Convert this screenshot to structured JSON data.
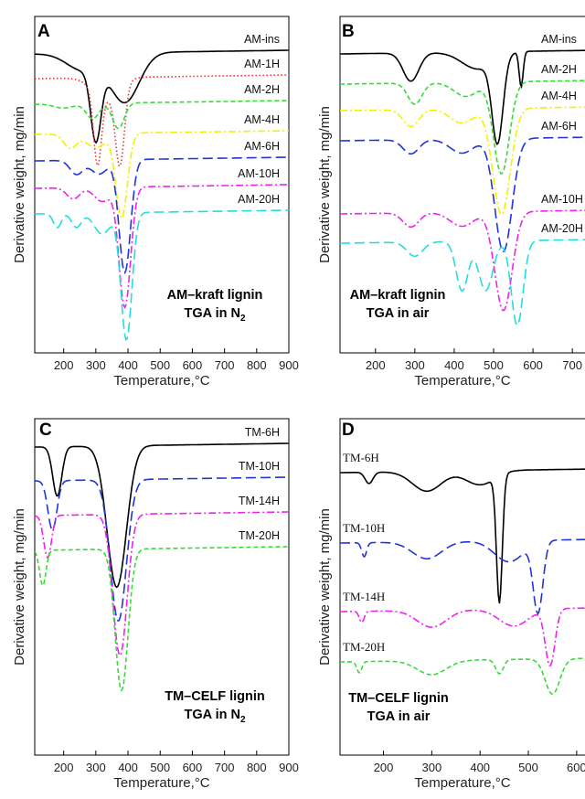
{
  "chart_data": [
    {
      "panel": "A",
      "type": "line",
      "xlabel": "Temperature,°C",
      "ylabel": "Derivative weight, mg/min",
      "xlim": [
        110,
        900
      ],
      "xticks": [
        200,
        300,
        400,
        500,
        600,
        700,
        800,
        900
      ],
      "yticks": [],
      "annotation": [
        "AM–kraft lignin",
        "TGA in N",
        "2"
      ],
      "series": [
        {
          "name": "AM-ins",
          "color": "#000000",
          "dash": "solid",
          "offset": 55,
          "scale": 1.0,
          "peaks": [
            [
              300,
              0.5,
              16
            ],
            [
              390,
              0.35,
              45
            ],
            [
              260,
              0.12,
              50
            ]
          ],
          "tail": 0.05,
          "curv": [
            [
              0.4,
              1,
              0
            ],
            [
              0.05,
              0,
              0
            ]
          ]
        },
        {
          "name": "AM-1H",
          "color": "#ff2a2a",
          "dash": "dotted",
          "offset": 82,
          "scale": 1.0,
          "peaks": [
            [
              305,
              0.5,
              12
            ],
            [
              375,
              0.55,
              14
            ],
            [
              330,
              0.15,
              40
            ]
          ],
          "tail": 0.08
        },
        {
          "name": "AM-2H",
          "color": "#33dd33",
          "dash": "dashed",
          "offset": 110,
          "scale": 0.6,
          "peaks": [
            [
              290,
              0.18,
              20
            ],
            [
              370,
              0.3,
              18
            ],
            [
              200,
              0.05,
              30
            ]
          ],
          "tail": 0.05
        },
        {
          "name": "AM-4H",
          "color": "#f2f200",
          "dash": "dashdot",
          "offset": 143,
          "scale": 1.0,
          "peaks": [
            [
              380,
              0.6,
              18
            ],
            [
              220,
              0.1,
              20
            ],
            [
              300,
              0.1,
              30
            ]
          ],
          "tail": 0.05
        },
        {
          "name": "AM-6H",
          "color": "#1f35d6",
          "dash": "longdash",
          "offset": 172,
          "scale": 1.0,
          "peaks": [
            [
              390,
              0.8,
              18
            ],
            [
              240,
              0.1,
              20
            ],
            [
              310,
              0.1,
              25
            ]
          ],
          "tail": 0.05
        },
        {
          "name": "AM-10H",
          "color": "#ee22ee",
          "dash": "dashdot",
          "offset": 202,
          "scale": 1.0,
          "peaks": [
            [
              390,
              0.85,
              18
            ],
            [
              230,
              0.08,
              20
            ],
            [
              320,
              0.1,
              25
            ]
          ],
          "tail": 0.05
        },
        {
          "name": "AM-20H",
          "color": "#22dddd",
          "dash": "longdash",
          "offset": 230,
          "scale": 1.0,
          "peaks": [
            [
              395,
              0.9,
              17
            ],
            [
              180,
              0.1,
              12
            ],
            [
              240,
              0.1,
              15
            ],
            [
              320,
              0.15,
              25
            ]
          ],
          "tail": 0.05
        }
      ]
    },
    {
      "panel": "B",
      "type": "line",
      "xlabel": "Temperature,°C",
      "ylabel": "Derivative weight, mg/min",
      "xlim": [
        110,
        760
      ],
      "xticks": [
        200,
        300,
        400,
        500,
        600,
        700
      ],
      "yticks": [],
      "annotation": [
        "AM–kraft lignin",
        "TGA in air"
      ],
      "series": [
        {
          "name": "AM-ins",
          "color": "#000000",
          "dash": "solid",
          "offset": 55,
          "scale": 1.0,
          "peaks": [
            [
              290,
              0.2,
              20
            ],
            [
              510,
              0.6,
              14
            ],
            [
              570,
              0.25,
              5
            ],
            [
              460,
              0.12,
              40
            ]
          ],
          "tail": 0.0
        },
        {
          "name": "AM-2H",
          "color": "#33dd33",
          "dash": "dashed",
          "offset": 88,
          "scale": 1.0,
          "peaks": [
            [
              300,
              0.15,
              18
            ],
            [
              520,
              0.65,
              20
            ],
            [
              430,
              0.1,
              30
            ]
          ],
          "tail": 0.0
        },
        {
          "name": "AM-4H",
          "color": "#f2f200",
          "dash": "dashdot",
          "offset": 117,
          "scale": 1.0,
          "peaks": [
            [
              520,
              0.75,
              22
            ],
            [
              290,
              0.12,
              20
            ],
            [
              420,
              0.1,
              30
            ]
          ],
          "tail": 0.0
        },
        {
          "name": "AM-6H",
          "color": "#1f35d6",
          "dash": "longdash",
          "offset": 150,
          "scale": 1.0,
          "peaks": [
            [
              525,
              0.8,
              22
            ],
            [
              290,
              0.1,
              20
            ],
            [
              420,
              0.1,
              30
            ]
          ],
          "tail": 0.0
        },
        {
          "name": "AM-10H",
          "color": "#ee22ee",
          "dash": "dashdot",
          "offset": 230,
          "scale": 1.0,
          "peaks": [
            [
              525,
              0.7,
              22
            ],
            [
              290,
              0.1,
              20
            ],
            [
              420,
              0.1,
              30
            ]
          ],
          "tail": 0.0
        },
        {
          "name": "AM-20H",
          "color": "#22dddd",
          "dash": "longdash",
          "offset": 262,
          "scale": 1.0,
          "peaks": [
            [
              560,
              0.6,
              15
            ],
            [
              420,
              0.35,
              15
            ],
            [
              480,
              0.35,
              18
            ],
            [
              300,
              0.1,
              20
            ]
          ],
          "tail": 0.0
        }
      ]
    },
    {
      "panel": "C",
      "type": "line",
      "xlabel": "Temperature,°C",
      "ylabel": "Derivative weight, mg/min",
      "xlim": [
        110,
        900
      ],
      "xticks": [
        200,
        300,
        400,
        500,
        600,
        700,
        800,
        900
      ],
      "yticks": [],
      "annotation": [
        "TM–CELF lignin",
        "TGA in N",
        "2"
      ],
      "series": [
        {
          "name": "TM-6H",
          "color": "#000000",
          "dash": "solid",
          "offset": 485,
          "scale": 1.0,
          "peaks": [
            [
              180,
              0.35,
              14
            ],
            [
              365,
              1.0,
              30
            ]
          ],
          "tail": 0.05
        },
        {
          "name": "TM-10H",
          "color": "#1f35d6",
          "dash": "longdash",
          "offset": 522,
          "scale": 1.0,
          "peaks": [
            [
              165,
              0.35,
              14
            ],
            [
              370,
              1.0,
              25
            ]
          ],
          "tail": 0.05
        },
        {
          "name": "TM-14H",
          "color": "#ee22ee",
          "dash": "dashdot",
          "offset": 560,
          "scale": 1.0,
          "peaks": [
            [
              150,
              0.3,
              12
            ],
            [
              375,
              1.0,
              22
            ]
          ],
          "tail": 0.05
        },
        {
          "name": "TM-20H",
          "color": "#33dd33",
          "dash": "dashed",
          "offset": 598,
          "scale": 1.0,
          "peaks": [
            [
              135,
              0.25,
              10
            ],
            [
              380,
              1.0,
              20
            ]
          ],
          "tail": 0.05
        }
      ]
    },
    {
      "panel": "D",
      "type": "line",
      "xlabel": "Temperature,°C",
      "ylabel": "Derivative weight, mg/min",
      "xlim": [
        110,
        640
      ],
      "xticks": [
        200,
        300,
        400,
        500,
        600
      ],
      "yticks": [],
      "annotation": [
        "TM–CELF lignin",
        "TGA in air"
      ],
      "series": [
        {
          "name": "TM-6H",
          "color": "#000000",
          "dash": "solid",
          "offset": 513,
          "scale": 1.0,
          "peaks": [
            [
              170,
              0.08,
              8
            ],
            [
              290,
              0.14,
              30
            ],
            [
              440,
              0.9,
              6
            ],
            [
              400,
              0.1,
              30
            ]
          ],
          "tail": 0.0
        },
        {
          "name": "TM-10H",
          "color": "#1f35d6",
          "dash": "longdash",
          "offset": 590,
          "scale": 1.0,
          "peaks": [
            [
              160,
              0.1,
              5
            ],
            [
              290,
              0.12,
              30
            ],
            [
              520,
              0.5,
              10
            ],
            [
              460,
              0.15,
              30
            ]
          ],
          "tail": 0.0
        },
        {
          "name": "TM-14H",
          "color": "#ee22ee",
          "dash": "dashdot",
          "offset": 665,
          "scale": 1.0,
          "peaks": [
            [
              155,
              0.08,
              5
            ],
            [
              300,
              0.12,
              30
            ],
            [
              545,
              0.4,
              10
            ],
            [
              470,
              0.12,
              30
            ]
          ],
          "tail": 0.0
        },
        {
          "name": "TM-20H",
          "color": "#33dd33",
          "dash": "dashed",
          "offset": 720,
          "scale": 1.0,
          "peaks": [
            [
              150,
              0.08,
              5
            ],
            [
              300,
              0.1,
              30
            ],
            [
              440,
              0.1,
              8
            ],
            [
              550,
              0.25,
              15
            ]
          ],
          "tail": 0.0
        }
      ]
    }
  ]
}
